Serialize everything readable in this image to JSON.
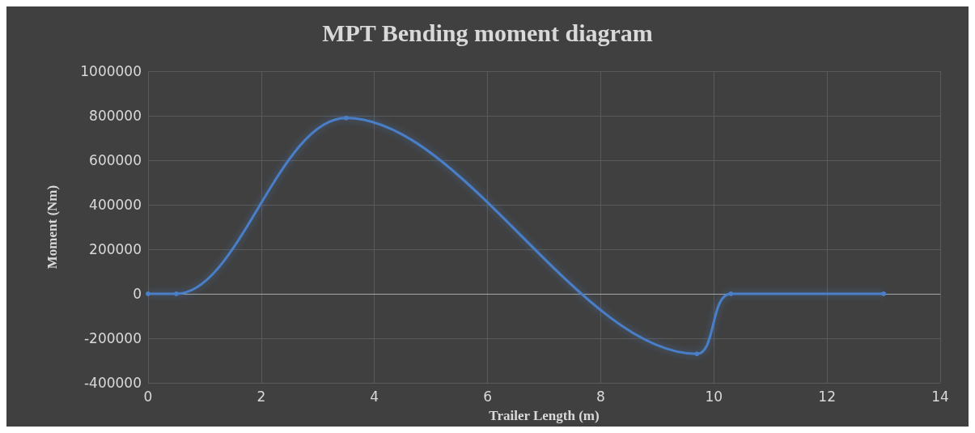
{
  "chart_data": {
    "type": "line",
    "title": "MPT Bending moment diagram",
    "xlabel": "Trailer Length (m)",
    "ylabel": "Moment (Nm)",
    "x": [
      0,
      0.5,
      3.5,
      9.7,
      10.3,
      13
    ],
    "series": [
      {
        "color": "#4a7fc8",
        "values": [
          0,
          0,
          790000,
          -270000,
          0,
          0
        ]
      }
    ],
    "xlim": [
      0,
      14
    ],
    "xticks": [
      0,
      2,
      4,
      6,
      8,
      10,
      12,
      14
    ],
    "ylim": [
      -400000,
      1000000
    ],
    "yticks": [
      -400000,
      -200000,
      0,
      200000,
      400000,
      600000,
      800000,
      1000000
    ],
    "grid": true,
    "marker": "circle",
    "line_style": "solid"
  }
}
